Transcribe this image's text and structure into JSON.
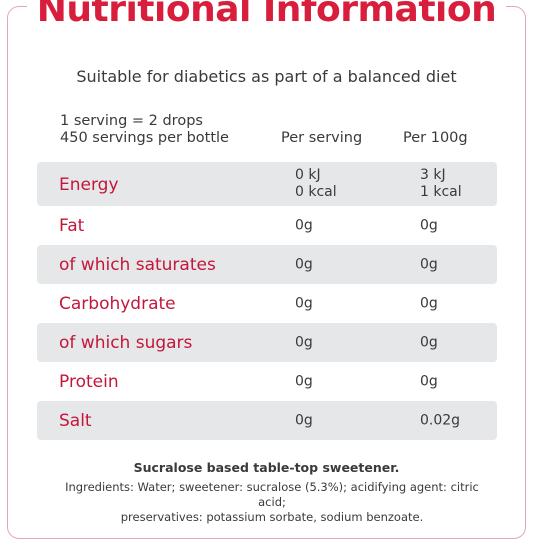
{
  "title": "Nutritional Information",
  "subtitle": "Suitable for diabetics as part of a balanced diet",
  "serving_line_1": "1 serving = 2 drops",
  "serving_line_2": "450 servings per bottle",
  "columns": {
    "per_serving": "Per serving",
    "per_100g": "Per 100g"
  },
  "rows": [
    {
      "label": "Energy",
      "per_serving": [
        "0 kJ",
        "0 kcal"
      ],
      "per_100g": [
        "3 kJ",
        "1 kcal"
      ]
    },
    {
      "label": "Fat",
      "per_serving": "0g",
      "per_100g": "0g"
    },
    {
      "label": "of which saturates",
      "per_serving": "0g",
      "per_100g": "0g"
    },
    {
      "label": "Carbohydrate",
      "per_serving": "0g",
      "per_100g": "0g"
    },
    {
      "label": "of which sugars",
      "per_serving": "0g",
      "per_100g": "0g"
    },
    {
      "label": "Protein",
      "per_serving": "0g",
      "per_100g": "0g"
    },
    {
      "label": "Salt",
      "per_serving": "0g",
      "per_100g": "0.02g"
    }
  ],
  "footer": {
    "heading": "Sucralose based table-top sweetener.",
    "ingredients_line_1": "Ingredients: Water; sweetener: sucralose (5.3%); acidifying agent: citric acid;",
    "ingredients_line_2": "preservatives: potassium sorbate, sodium benzoate."
  },
  "colors": {
    "accent": "#d81e3c",
    "label": "#c4163a",
    "shade": "#e6e7e9",
    "border": "#e3a9b1"
  }
}
